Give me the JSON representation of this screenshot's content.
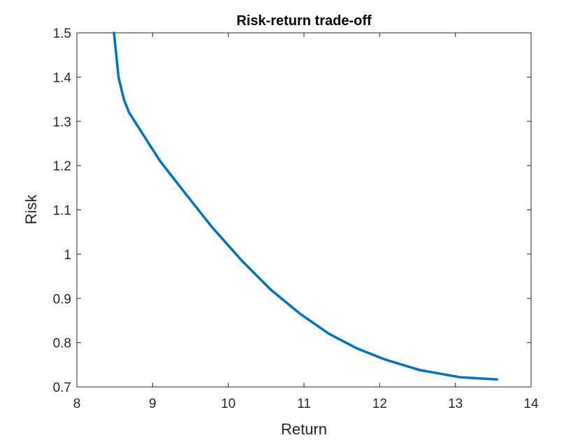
{
  "chart_data": {
    "type": "line",
    "title": "Risk-return trade-off",
    "xlabel": "Return",
    "ylabel": "Risk",
    "xlim": [
      8,
      14
    ],
    "ylim": [
      0.7,
      1.5
    ],
    "xticks": [
      "8",
      "9",
      "10",
      "11",
      "12",
      "13",
      "14"
    ],
    "yticks": [
      "0.7",
      "0.8",
      "0.9",
      "1",
      "1.1",
      "1.2",
      "1.3",
      "1.4",
      "1.5"
    ],
    "grid": false,
    "line_color": "#0072BD",
    "series": [
      {
        "x": [
          8.49,
          8.55,
          8.62,
          8.69,
          8.8,
          9.1,
          9.42,
          9.79,
          10.18,
          10.56,
          10.95,
          11.33,
          11.7,
          12.07,
          12.53,
          13.06,
          13.55
        ],
        "y": [
          1.5,
          1.4,
          1.35,
          1.32,
          1.29,
          1.21,
          1.14,
          1.06,
          0.985,
          0.92,
          0.865,
          0.82,
          0.787,
          0.762,
          0.738,
          0.722,
          0.717
        ]
      }
    ]
  }
}
